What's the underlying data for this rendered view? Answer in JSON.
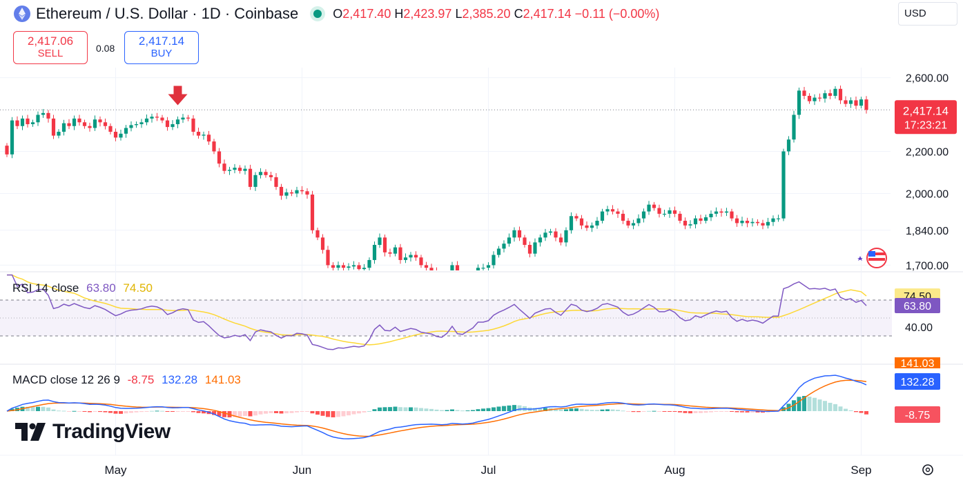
{
  "header": {
    "symbol_title": "Ethereum / U.S. Dollar · 1D · Coinbase",
    "open_label": "O",
    "open": "2,417.40",
    "high_label": "H",
    "high": "2,423.97",
    "low_label": "L",
    "low": "2,385.20",
    "close_label": "C",
    "close": "2,417.14",
    "change": "−0.11 (−0.00%)",
    "currency": "USD"
  },
  "trade": {
    "sell_price": "2,417.06",
    "sell_label": "SELL",
    "spread": "0.08",
    "buy_price": "2,417.14",
    "buy_label": "BUY"
  },
  "price_badge": {
    "price": "2,417.14",
    "countdown": "17:23:21"
  },
  "rsi": {
    "label": "RSI 14 close",
    "value": "63.80",
    "ma": "74.50",
    "axis_label": "40.00"
  },
  "macd": {
    "label": "MACD close 12 26 9",
    "hist": "-8.75",
    "macd": "132.28",
    "signal": "141.03"
  },
  "branding": "TradingView",
  "colors": {
    "up": "#089981",
    "down": "#f23645",
    "rsi": "#7e57c2",
    "rsi_ma": "#fdd835",
    "macd": "#2962ff",
    "signal": "#ff6d00",
    "badge": "#f23645"
  },
  "chart_data": [
    {
      "type": "candlestick",
      "title": "Ethereum / U.S. Dollar · 1D · Coinbase",
      "x_ticks": [
        "May",
        "Jun",
        "Jul",
        "Aug",
        "Sep"
      ],
      "y_ticks": [
        "2,600.00",
        "2,200.00",
        "2,000.00",
        "1,840.00",
        "1,700.00"
      ],
      "y_scale": "log",
      "ylim": [
        1680,
        2660
      ],
      "last_price": 2417.14,
      "annotations": [
        "sell-signal arrow near 2,370 in mid May"
      ],
      "close": [
        2185,
        2360,
        2330,
        2370,
        2340,
        2350,
        2390,
        2400,
        2370,
        2280,
        2300,
        2345,
        2330,
        2370,
        2350,
        2330,
        2320,
        2365,
        2350,
        2330,
        2300,
        2270,
        2290,
        2320,
        2335,
        2340,
        2350,
        2370,
        2380,
        2375,
        2360,
        2325,
        2340,
        2365,
        2375,
        2370,
        2300,
        2280,
        2285,
        2250,
        2200,
        2140,
        2105,
        2110,
        2120,
        2105,
        2115,
        2030,
        2085,
        2100,
        2085,
        2075,
        2030,
        1990,
        2005,
        2000,
        2015,
        2010,
        1995,
        1840,
        1810,
        1760,
        1700,
        1690,
        1700,
        1690,
        1695,
        1700,
        1685,
        1690,
        1720,
        1780,
        1810,
        1750,
        1745,
        1770,
        1720,
        1730,
        1740,
        1730,
        1700,
        1690,
        1680,
        1650,
        1640,
        1660,
        1700,
        1620,
        1610,
        1630,
        1650,
        1690,
        1690,
        1700,
        1740,
        1765,
        1785,
        1810,
        1840,
        1810,
        1780,
        1745,
        1790,
        1810,
        1830,
        1835,
        1810,
        1790,
        1840,
        1900,
        1890,
        1860,
        1850,
        1860,
        1880,
        1920,
        1930,
        1920,
        1910,
        1880,
        1860,
        1870,
        1890,
        1920,
        1950,
        1935,
        1910,
        1910,
        1925,
        1910,
        1880,
        1860,
        1865,
        1890,
        1880,
        1895,
        1910,
        1920,
        1915,
        1920,
        1890,
        1870,
        1880,
        1870,
        1875,
        1870,
        1860,
        1875,
        1890,
        1890,
        2200,
        2260,
        2390,
        2525,
        2495,
        2465,
        2485,
        2480,
        2510,
        2495,
        2535,
        2470,
        2450,
        2470,
        2440,
        2475,
        2417.14
      ]
    },
    {
      "type": "line",
      "title": "RSI 14 close",
      "ylim": [
        0,
        100
      ],
      "y_ticks": [
        "40.00"
      ],
      "series": [
        {
          "name": "RSI 14 close",
          "last": 63.8
        },
        {
          "name": "RSI-based MA",
          "last": 74.5
        }
      ]
    },
    {
      "type": "line",
      "title": "MACD close 12 26 9",
      "series": [
        {
          "name": "MACD",
          "last": 132.28
        },
        {
          "name": "Signal",
          "last": 141.03
        },
        {
          "name": "Histogram",
          "last": -8.75
        }
      ]
    }
  ]
}
